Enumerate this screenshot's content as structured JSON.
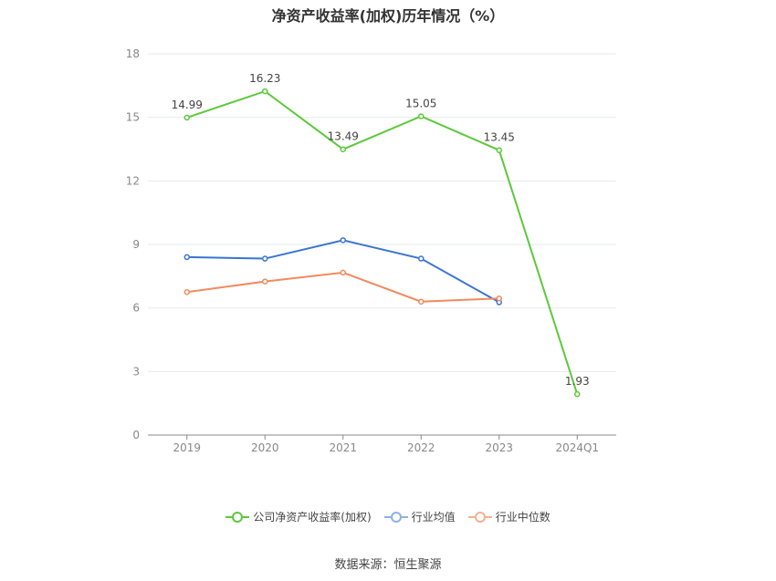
{
  "chart_data": {
    "type": "line",
    "title": "净资产收益率(加权)历年情况（%）",
    "categories": [
      "2019",
      "2020",
      "2021",
      "2022",
      "2023",
      "2024Q1"
    ],
    "ylim": [
      0,
      18
    ],
    "yticks": [
      0,
      3,
      6,
      9,
      12,
      15,
      18
    ],
    "grid": true,
    "legend_position": "bottom",
    "series": [
      {
        "name": "公司净资产收益率(加权)",
        "color": "#5cc93a",
        "values": [
          14.99,
          16.23,
          13.49,
          15.05,
          13.45,
          1.93
        ],
        "labels": [
          "14.99",
          "16.23",
          "13.49",
          "15.05",
          "13.45",
          "1.93"
        ]
      },
      {
        "name": "行业均值",
        "color": "#3a74d4",
        "values": [
          8.4,
          8.33,
          9.2,
          8.33,
          6.27,
          null
        ]
      },
      {
        "name": "行业中位数",
        "color": "#f08a5d",
        "values": [
          6.75,
          7.25,
          7.67,
          6.3,
          6.45,
          null
        ]
      }
    ]
  },
  "legend": {
    "items": [
      {
        "label": "公司净资产收益率(加权)",
        "color": "#5cc93a"
      },
      {
        "label": "行业均值",
        "color": "#8fb0e6"
      },
      {
        "label": "行业中位数",
        "color": "#f5b093"
      }
    ]
  },
  "footer": {
    "source": "数据来源：恒生聚源"
  }
}
